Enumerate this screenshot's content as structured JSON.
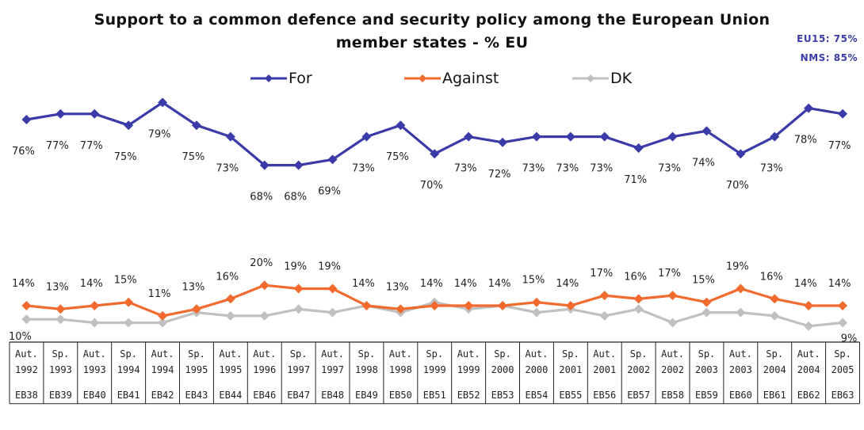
{
  "chart_data": {
    "type": "line",
    "title_line1": "Support to a common defence and security policy among the European Union",
    "title_line2": "member states - % EU",
    "annotations": [
      "EU15: 75%",
      "NMS: 85%"
    ],
    "legend_position": "top",
    "grid": false,
    "categories": [
      {
        "period": "Aut.",
        "year": "1992",
        "wave": "EB38"
      },
      {
        "period": "Sp.",
        "year": "1993",
        "wave": "EB39"
      },
      {
        "period": "Aut.",
        "year": "1993",
        "wave": "EB40"
      },
      {
        "period": "Sp.",
        "year": "1994",
        "wave": "EB41"
      },
      {
        "period": "Aut.",
        "year": "1994",
        "wave": "EB42"
      },
      {
        "period": "Sp.",
        "year": "1995",
        "wave": "EB43"
      },
      {
        "period": "Aut.",
        "year": "1995",
        "wave": "EB44"
      },
      {
        "period": "Aut.",
        "year": "1996",
        "wave": "EB46"
      },
      {
        "period": "Sp.",
        "year": "1997",
        "wave": "EB47"
      },
      {
        "period": "Aut.",
        "year": "1997",
        "wave": "EB48"
      },
      {
        "period": "Sp.",
        "year": "1998",
        "wave": "EB49"
      },
      {
        "period": "Aut.",
        "year": "1998",
        "wave": "EB50"
      },
      {
        "period": "Sp.",
        "year": "1999",
        "wave": "EB51"
      },
      {
        "period": "Aut.",
        "year": "1999",
        "wave": "EB52"
      },
      {
        "period": "Sp.",
        "year": "2000",
        "wave": "EB53"
      },
      {
        "period": "Aut.",
        "year": "2000",
        "wave": "EB54"
      },
      {
        "period": "Sp.",
        "year": "2001",
        "wave": "EB55"
      },
      {
        "period": "Aut.",
        "year": "2001",
        "wave": "EB56"
      },
      {
        "period": "Sp.",
        "year": "2002",
        "wave": "EB57"
      },
      {
        "period": "Aut.",
        "year": "2002",
        "wave": "EB58"
      },
      {
        "period": "Sp.",
        "year": "2003",
        "wave": "EB59"
      },
      {
        "period": "Aut.",
        "year": "2003",
        "wave": "EB60"
      },
      {
        "period": "Sp.",
        "year": "2004",
        "wave": "EB61"
      },
      {
        "period": "Aut.",
        "year": "2004",
        "wave": "EB62"
      },
      {
        "period": "Sp.",
        "year": "2005",
        "wave": "EB63"
      }
    ],
    "series": [
      {
        "name": "For",
        "color": "#3a3aa8",
        "values": [
          76,
          77,
          77,
          75,
          79,
          75,
          73,
          68,
          68,
          69,
          73,
          75,
          70,
          73,
          72,
          73,
          73,
          73,
          71,
          73,
          74,
          70,
          73,
          78,
          77
        ],
        "labels_shown": true
      },
      {
        "name": "Against",
        "color": "#f26a2e",
        "values": [
          14,
          13,
          14,
          15,
          11,
          13,
          16,
          20,
          19,
          19,
          14,
          13,
          14,
          14,
          14,
          15,
          14,
          17,
          16,
          17,
          15,
          19,
          16,
          14,
          14
        ],
        "labels_shown": true
      },
      {
        "name": "DK",
        "color": "#c0c0c0",
        "values": [
          10,
          10,
          9,
          9,
          9,
          12,
          11,
          11,
          13,
          12,
          14,
          12,
          15,
          13,
          14,
          12,
          13,
          11,
          13,
          9,
          12,
          12,
          11,
          8,
          9
        ],
        "labels_shown": [
          true,
          false,
          false,
          false,
          false,
          false,
          false,
          false,
          false,
          false,
          false,
          false,
          false,
          false,
          false,
          false,
          false,
          false,
          false,
          false,
          false,
          false,
          false,
          false,
          true
        ]
      }
    ],
    "value_labels": {
      "For": [
        "76%",
        "77%",
        "77%",
        "75%",
        "79%",
        "75%",
        "73%",
        "68%",
        "68%",
        "69%",
        "73%",
        "75%",
        "70%",
        "73%",
        "72%",
        "73%",
        "73%",
        "73%",
        "71%",
        "73%",
        "74%",
        "70%",
        "73%",
        "78%",
        "77%"
      ],
      "Against": [
        "14%",
        "13%",
        "14%",
        "15%",
        "11%",
        "13%",
        "16%",
        "20%",
        "19%",
        "19%",
        "14%",
        "13%",
        "14%",
        "14%",
        "14%",
        "15%",
        "14%",
        "17%",
        "16%",
        "17%",
        "15%",
        "19%",
        "16%",
        "14%",
        "14%"
      ],
      "DK_first": "10%",
      "DK_last": "9%"
    }
  }
}
